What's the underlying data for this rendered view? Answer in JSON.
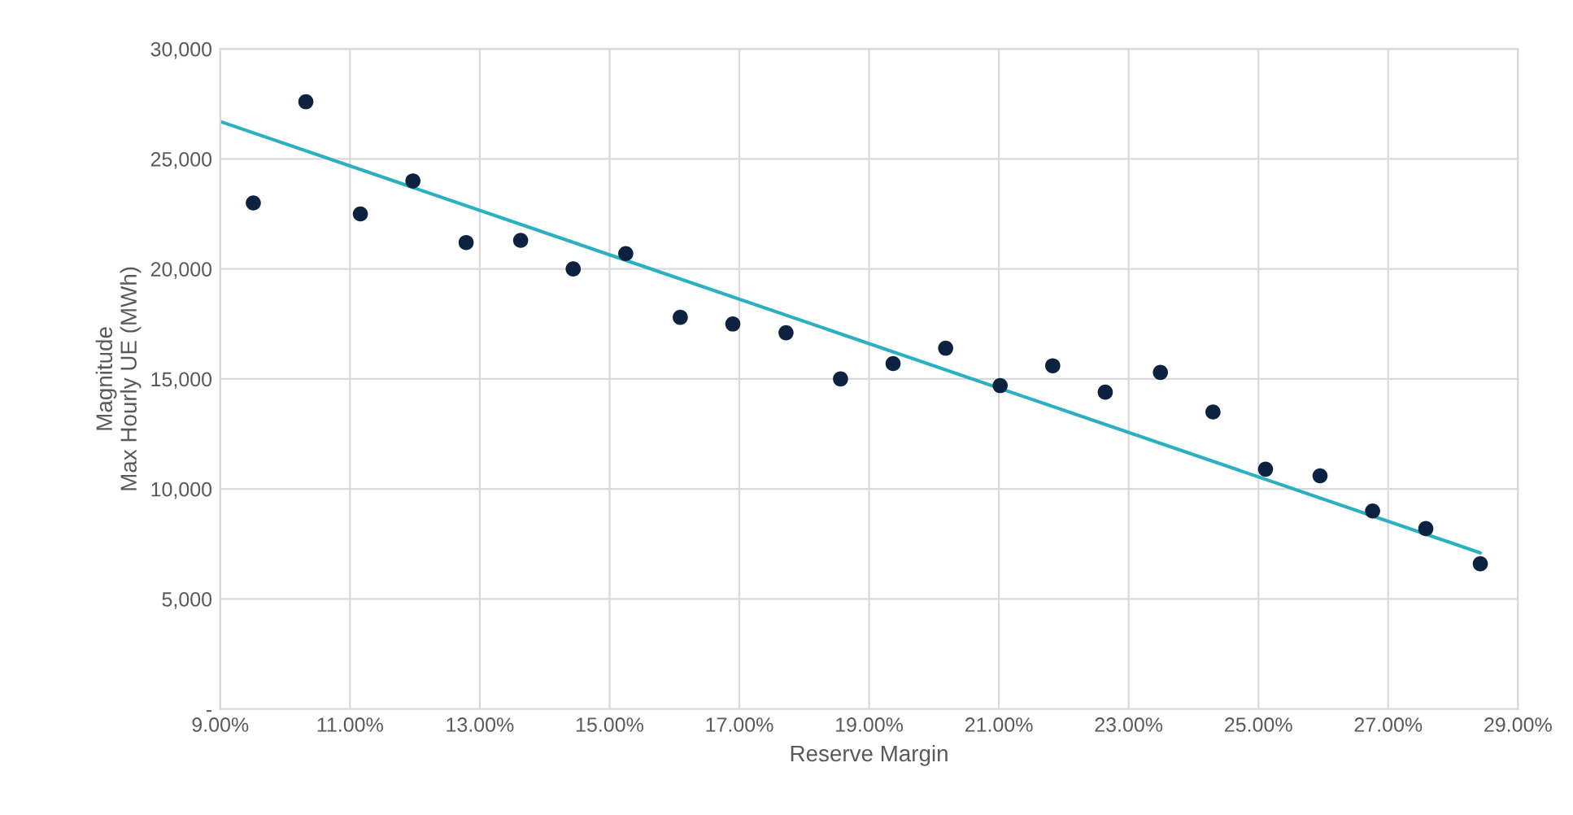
{
  "chart_data": {
    "type": "scatter",
    "xlabel": "Reserve Margin",
    "ylabel": "Magnitude\nMax Hourly UE (MWh)",
    "x": [
      9.51,
      10.32,
      11.16,
      11.97,
      12.79,
      13.63,
      14.44,
      15.25,
      16.09,
      16.9,
      17.72,
      18.56,
      19.37,
      20.18,
      21.02,
      21.83,
      22.64,
      23.49,
      24.3,
      25.11,
      25.95,
      26.76,
      27.58,
      28.42
    ],
    "series": [
      {
        "color": "#0d2240",
        "marker": "circle",
        "values": [
          23000,
          27600,
          22500,
          24000,
          21200,
          21300,
          20000,
          20700,
          17800,
          17500,
          17100,
          15000,
          15700,
          16400,
          14700,
          15600,
          14400,
          15300,
          13500,
          10900,
          10600,
          9000,
          8200,
          6600
        ]
      },
      {
        "type": "line",
        "marker": "none",
        "color": "#2ab0c0",
        "x": [
          9.0,
          28.42
        ],
        "values": [
          26700,
          7100
        ]
      }
    ],
    "xlim": [
      9,
      29
    ],
    "xticks": [
      {
        "value": 9,
        "label": "9.00%"
      },
      {
        "value": 11,
        "label": "11.00%"
      },
      {
        "value": 13,
        "label": "13.00%"
      },
      {
        "value": 15,
        "label": "15.00%"
      },
      {
        "value": 17,
        "label": "17.00%"
      },
      {
        "value": 19,
        "label": "19.00%"
      },
      {
        "value": 21,
        "label": "21.00%"
      },
      {
        "value": 23,
        "label": "23.00%"
      },
      {
        "value": 25,
        "label": "25.00%"
      },
      {
        "value": 27,
        "label": "27.00%"
      },
      {
        "value": 29,
        "label": "29.00%"
      }
    ],
    "ylim": [
      0,
      30000
    ],
    "yticks": [
      {
        "value": 0,
        "label": "-"
      },
      {
        "value": 5000,
        "label": "5,000"
      },
      {
        "value": 10000,
        "label": "10,000"
      },
      {
        "value": 15000,
        "label": "15,000"
      },
      {
        "value": 20000,
        "label": "20,000"
      },
      {
        "value": 25000,
        "label": "25,000"
      },
      {
        "value": 30000,
        "label": "30,000"
      }
    ],
    "grid": true,
    "legend": false
  }
}
